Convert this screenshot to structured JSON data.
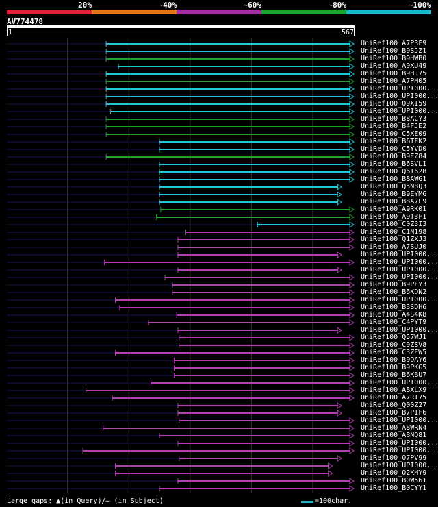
{
  "legend": [
    {
      "label": "20%",
      "color": "#e0203a"
    },
    {
      "label": "~40%",
      "color": "#e07820"
    },
    {
      "label": "~60%",
      "color": "#a030a0"
    },
    {
      "label": "~80%",
      "color": "#20a030"
    },
    {
      "label": "~100%",
      "color": "#20b8c8"
    }
  ],
  "query": {
    "name": "AV774478",
    "start": "1",
    "end": "567",
    "length": 567
  },
  "footer": {
    "large_gaps": "Large gaps: ▲(in Query)/– (in Subject)",
    "scale": "=100char."
  },
  "hits": [
    {
      "name": "UniRef100_A7P3F9",
      "start": 163,
      "end": 567,
      "color": "cyan"
    },
    {
      "name": "UniRef100_B9SJZ1",
      "start": 163,
      "end": 567,
      "color": "cyan"
    },
    {
      "name": "UniRef100_B9HWB0",
      "start": 163,
      "end": 567,
      "color": "green"
    },
    {
      "name": "UniRef100_A9XU49",
      "start": 183,
      "end": 567,
      "color": "cyan"
    },
    {
      "name": "UniRef100_B9HJ75",
      "start": 163,
      "end": 567,
      "color": "cyan"
    },
    {
      "name": "UniRef100_A7PH05",
      "start": 163,
      "end": 567,
      "color": "green"
    },
    {
      "name": "UniRef100_UPI000...",
      "start": 163,
      "end": 567,
      "color": "cyan"
    },
    {
      "name": "UniRef100_UPI000...",
      "start": 163,
      "end": 567,
      "color": "cyan"
    },
    {
      "name": "UniRef100_Q9XI59",
      "start": 163,
      "end": 567,
      "color": "cyan"
    },
    {
      "name": "UniRef100_UPI000...",
      "start": 170,
      "end": 567,
      "color": "cyan"
    },
    {
      "name": "UniRef100_B8ACY3",
      "start": 163,
      "end": 567,
      "color": "green"
    },
    {
      "name": "UniRef100_B4FJE2",
      "start": 163,
      "end": 567,
      "color": "green"
    },
    {
      "name": "UniRef100_C5XE09",
      "start": 163,
      "end": 567,
      "color": "green"
    },
    {
      "name": "UniRef100_B6TFK2",
      "start": 250,
      "end": 567,
      "color": "cyan"
    },
    {
      "name": "UniRef100_C5YVD0",
      "start": 250,
      "end": 567,
      "color": "cyan"
    },
    {
      "name": "UniRef100_B9EZ84",
      "start": 163,
      "end": 567,
      "color": "green"
    },
    {
      "name": "UniRef100_B6SVL1",
      "start": 250,
      "end": 567,
      "color": "cyan"
    },
    {
      "name": "UniRef100_Q6I628",
      "start": 250,
      "end": 567,
      "color": "cyan"
    },
    {
      "name": "UniRef100_B8AWG1",
      "start": 250,
      "end": 567,
      "color": "cyan"
    },
    {
      "name": "UniRef100_Q5N8Q3",
      "start": 250,
      "end": 547,
      "color": "cyan"
    },
    {
      "name": "UniRef100_B9EYM6",
      "start": 250,
      "end": 547,
      "color": "cyan"
    },
    {
      "name": "UniRef100_B8A7L9",
      "start": 250,
      "end": 547,
      "color": "cyan"
    },
    {
      "name": "UniRef100_A9RK01",
      "start": 252,
      "end": 567,
      "color": "green"
    },
    {
      "name": "UniRef100_A9T3F1",
      "start": 245,
      "end": 567,
      "color": "green"
    },
    {
      "name": "UniRef100_C0Z3I3",
      "start": 410,
      "end": 567,
      "color": "cyan"
    },
    {
      "name": "UniRef100_C1N198",
      "start": 293,
      "end": 567,
      "color": "magenta"
    },
    {
      "name": "UniRef100_Q1ZXJ3",
      "start": 280,
      "end": 567,
      "color": "magenta"
    },
    {
      "name": "UniRef100_A7SUJ0",
      "start": 280,
      "end": 567,
      "color": "magenta"
    },
    {
      "name": "UniRef100_UPI000...",
      "start": 280,
      "end": 547,
      "color": "magenta"
    },
    {
      "name": "UniRef100_UPI000...",
      "start": 160,
      "end": 567,
      "color": "magenta"
    },
    {
      "name": "UniRef100_UPI000...",
      "start": 280,
      "end": 547,
      "color": "magenta"
    },
    {
      "name": "UniRef100_UPI000...",
      "start": 259,
      "end": 567,
      "color": "magenta"
    },
    {
      "name": "UniRef100_B9PFY3",
      "start": 271,
      "end": 567,
      "color": "magenta"
    },
    {
      "name": "UniRef100_B6KDN2",
      "start": 271,
      "end": 567,
      "color": "magenta"
    },
    {
      "name": "UniRef100_UPI000...",
      "start": 178,
      "end": 567,
      "color": "magenta"
    },
    {
      "name": "UniRef100_B3SDH6",
      "start": 185,
      "end": 567,
      "color": "magenta"
    },
    {
      "name": "UniRef100_A4S4K8",
      "start": 278,
      "end": 567,
      "color": "magenta"
    },
    {
      "name": "UniRef100_C4PYT9",
      "start": 232,
      "end": 567,
      "color": "magenta"
    },
    {
      "name": "UniRef100_UPI000...",
      "start": 280,
      "end": 547,
      "color": "magenta"
    },
    {
      "name": "UniRef100_Q57WJ1",
      "start": 282,
      "end": 567,
      "color": "magenta"
    },
    {
      "name": "UniRef100_C9ZSV8",
      "start": 282,
      "end": 567,
      "color": "magenta"
    },
    {
      "name": "UniRef100_C3ZEW5",
      "start": 178,
      "end": 567,
      "color": "magenta"
    },
    {
      "name": "UniRef100_B9QAY6",
      "start": 274,
      "end": 567,
      "color": "magenta"
    },
    {
      "name": "UniRef100_B9PKG5",
      "start": 274,
      "end": 567,
      "color": "magenta"
    },
    {
      "name": "UniRef100_B6KBU7",
      "start": 274,
      "end": 567,
      "color": "magenta"
    },
    {
      "name": "UniRef100_UPI000...",
      "start": 236,
      "end": 567,
      "color": "magenta"
    },
    {
      "name": "UniRef100_A8XLX9",
      "start": 130,
      "end": 567,
      "color": "magenta"
    },
    {
      "name": "UniRef100_A7RI75",
      "start": 173,
      "end": 567,
      "color": "magenta"
    },
    {
      "name": "UniRef100_Q00Z27",
      "start": 280,
      "end": 547,
      "color": "magenta"
    },
    {
      "name": "UniRef100_B7PIF6",
      "start": 280,
      "end": 547,
      "color": "magenta"
    },
    {
      "name": "UniRef100_UPI000...",
      "start": 282,
      "end": 567,
      "color": "magenta"
    },
    {
      "name": "UniRef100_A8WRN4",
      "start": 158,
      "end": 567,
      "color": "magenta"
    },
    {
      "name": "UniRef100_A8NQ81",
      "start": 250,
      "end": 567,
      "color": "magenta"
    },
    {
      "name": "UniRef100_UPI000...",
      "start": 280,
      "end": 567,
      "color": "magenta"
    },
    {
      "name": "UniRef100_UPI000...",
      "start": 125,
      "end": 567,
      "color": "magenta"
    },
    {
      "name": "UniRef100_Q7PV99",
      "start": 282,
      "end": 547,
      "color": "magenta"
    },
    {
      "name": "UniRef100_UPI000...",
      "start": 178,
      "end": 532,
      "color": "magenta"
    },
    {
      "name": "UniRef100_Q2KHY9",
      "start": 178,
      "end": 532,
      "color": "magenta"
    },
    {
      "name": "UniRef100_B0W561",
      "start": 280,
      "end": 567,
      "color": "magenta"
    },
    {
      "name": "UniRef100_B0CYY1",
      "start": 250,
      "end": 567,
      "color": "magenta"
    }
  ]
}
